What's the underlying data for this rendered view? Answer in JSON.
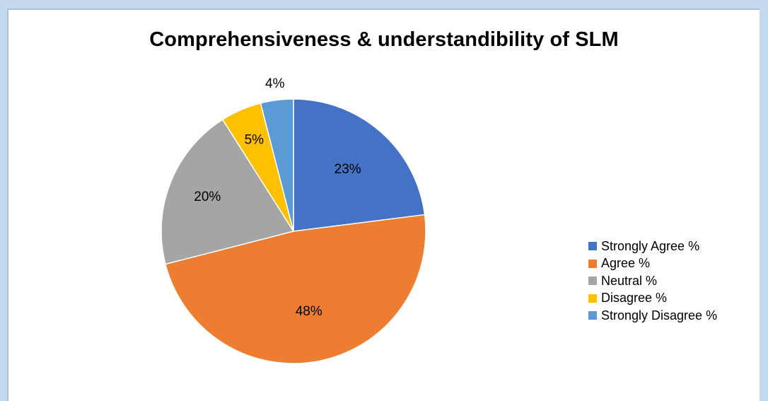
{
  "chart_data": {
    "type": "pie",
    "title": "Comprehensiveness & understandibility of SLM",
    "categories": [
      "Strongly Agree %",
      "Agree %",
      "Neutral %",
      "Disagree %",
      "Strongly Disagree %"
    ],
    "values": [
      23,
      48,
      20,
      5,
      4
    ],
    "labels": [
      "23%",
      "48%",
      "20%",
      "5%",
      "4%"
    ],
    "colors": [
      "#4472c4",
      "#ed7d31",
      "#a5a5a5",
      "#ffc000",
      "#5b9bd5"
    ],
    "legend_position": "right"
  }
}
